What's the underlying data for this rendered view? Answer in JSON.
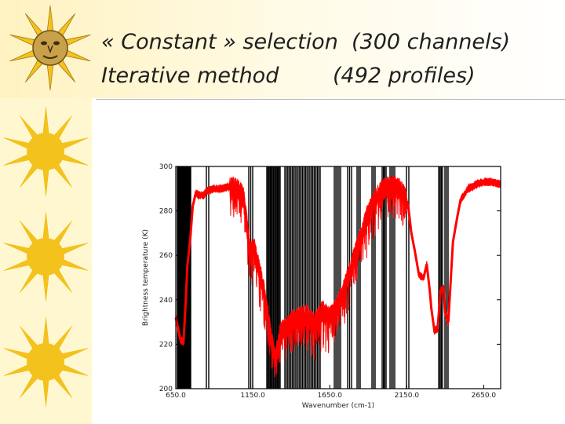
{
  "slide": {
    "title_line_1": "« Constant » selection  (300 channels)",
    "title_line_2": "Iterative method        (492 profiles)",
    "accent_band_color": "#fff7cf",
    "sun_icon": "sun-icon",
    "sun_color": "#f4c21d",
    "sun_face_color": "#c9a14a"
  },
  "chart_data": {
    "type": "line",
    "title": "",
    "xlabel": "Wavenumber (cm-1)",
    "ylabel": "Brightness temperature (K)",
    "xlim": [
      650,
      2760
    ],
    "ylim": [
      200,
      300
    ],
    "x_ticks": [
      650,
      1150,
      1650,
      2150,
      2650
    ],
    "x_tick_labels": [
      "650.0",
      "1150.0",
      "1650.0",
      "2150.0",
      "2650.0"
    ],
    "y_ticks": [
      200,
      220,
      240,
      260,
      280,
      300
    ],
    "grid": false,
    "legend": "none",
    "series": [
      {
        "color": "#ff0000",
        "x": [
          650,
          680,
          700,
          715,
          725,
          745,
          760,
          780,
          800,
          830,
          850,
          900,
          950,
          1000,
          1050,
          1090,
          1110,
          1130,
          1160,
          1190,
          1220,
          1250,
          1270,
          1290,
          1300,
          1330,
          1370,
          1400,
          1450,
          1500,
          1550,
          1600,
          1650,
          1700,
          1750,
          1800,
          1850,
          1900,
          1950,
          2000,
          2050,
          2100,
          2140,
          2160,
          2180,
          2200,
          2230,
          2260,
          2280,
          2300,
          2310,
          2330,
          2350,
          2370,
          2390,
          2400,
          2420,
          2450,
          2480,
          2500,
          2520,
          2550,
          2600,
          2650,
          2700,
          2760
        ],
        "y": [
          232,
          222,
          221,
          240,
          255,
          268,
          282,
          288,
          287,
          287,
          289,
          290,
          290,
          291,
          290,
          286,
          275,
          262,
          263,
          254,
          245,
          232,
          222,
          215,
          214,
          226,
          227,
          230,
          232,
          233,
          229,
          235,
          232,
          237,
          246,
          257,
          268,
          279,
          286,
          290,
          291,
          290,
          286,
          282,
          270,
          263,
          251,
          250,
          256,
          244,
          236,
          226,
          227,
          244,
          245,
          234,
          230,
          266,
          278,
          285,
          287,
          290,
          292,
          293,
          293,
          292
        ]
      }
    ]
  }
}
